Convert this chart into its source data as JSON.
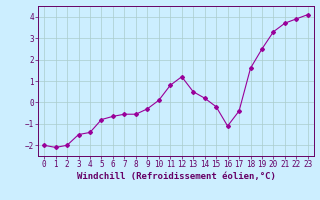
{
  "x": [
    0,
    1,
    2,
    3,
    4,
    5,
    6,
    7,
    8,
    9,
    10,
    11,
    12,
    13,
    14,
    15,
    16,
    17,
    18,
    19,
    20,
    21,
    22,
    23
  ],
  "y": [
    -2.0,
    -2.1,
    -2.0,
    -1.5,
    -1.4,
    -0.8,
    -0.65,
    -0.55,
    -0.55,
    -0.3,
    0.1,
    0.8,
    1.2,
    0.5,
    0.2,
    -0.2,
    -1.1,
    -0.4,
    1.6,
    2.5,
    3.3,
    3.7,
    3.9,
    4.1
  ],
  "line_color": "#990099",
  "marker": "D",
  "marker_size": 2,
  "bg_color": "#cceeff",
  "grid_color": "#aacccc",
  "axis_color": "#660066",
  "tick_label_color": "#660066",
  "xlabel": "Windchill (Refroidissement éolien,°C)",
  "xlabel_color": "#660066",
  "xlim": [
    -0.5,
    23.5
  ],
  "ylim": [
    -2.5,
    4.5
  ],
  "yticks": [
    -2,
    -1,
    0,
    1,
    2,
    3,
    4
  ],
  "xticks": [
    0,
    1,
    2,
    3,
    4,
    5,
    6,
    7,
    8,
    9,
    10,
    11,
    12,
    13,
    14,
    15,
    16,
    17,
    18,
    19,
    20,
    21,
    22,
    23
  ],
  "font_size": 5.5,
  "xlabel_fontsize": 6.5
}
